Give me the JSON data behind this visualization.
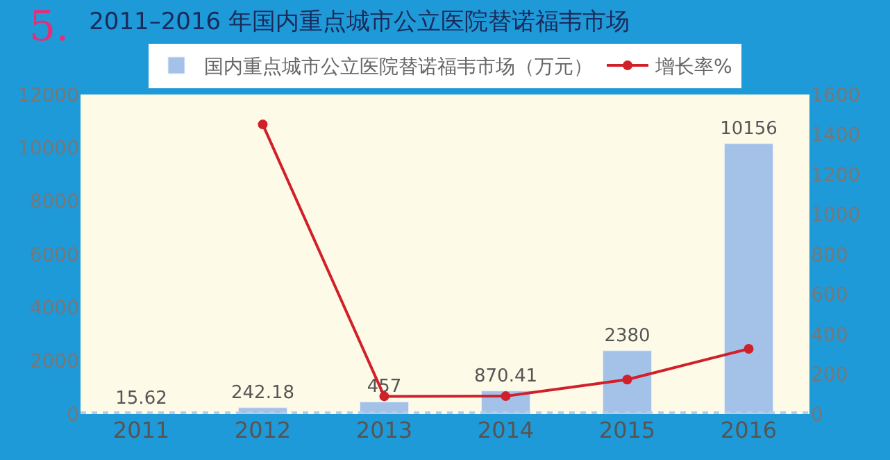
{
  "chart_data": {
    "type": "bar",
    "title": "2011–2016 年国内重点城市公立医院替诺福韦市场",
    "annotations": [
      "5."
    ],
    "categories": [
      "2011",
      "2012",
      "2013",
      "2014",
      "2015",
      "2016"
    ],
    "series": [
      {
        "name": "国内重点城市公立医院替诺福韦市场（万元）",
        "color": "#a4c2e8",
        "values": [
          15.62,
          242.18,
          457,
          870.41,
          2380,
          10156
        ],
        "value_labels": [
          "15.62",
          "242.18",
          "457",
          "870.41",
          "2380",
          "10156"
        ]
      },
      {
        "name": "增长率%",
        "type": "line",
        "axis": "y2",
        "color": "#d0202a",
        "marker": "circle",
        "values": [
          null,
          1450,
          89,
          90,
          173,
          327
        ]
      }
    ],
    "ylim": [
      0,
      12000
    ],
    "yticks": [
      0,
      2000,
      4000,
      6000,
      8000,
      10000,
      12000
    ],
    "y2lim": [
      0,
      1600
    ],
    "y2ticks": [
      0,
      200,
      400,
      600,
      800,
      1000,
      1200,
      1400,
      1600
    ],
    "grid": false,
    "legend": "top"
  }
}
